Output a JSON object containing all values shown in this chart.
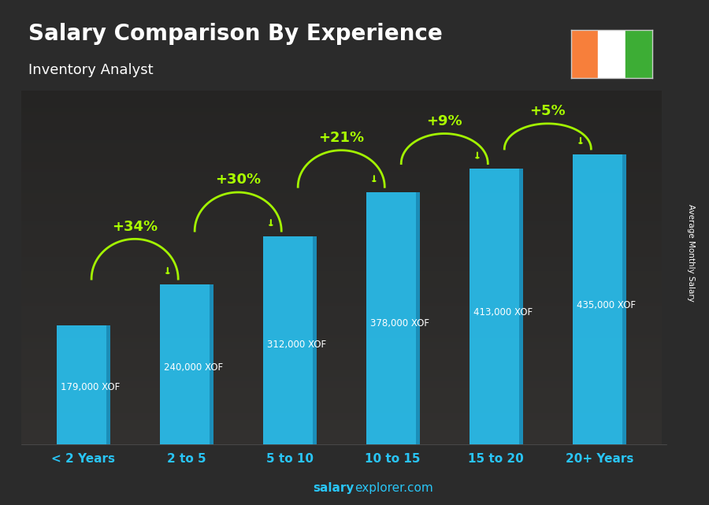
{
  "title": "Salary Comparison By Experience",
  "subtitle": "Inventory Analyst",
  "ylabel": "Average Monthly Salary",
  "footer_bold": "salary",
  "footer_normal": "explorer.com",
  "categories": [
    "< 2 Years",
    "2 to 5",
    "5 to 10",
    "10 to 15",
    "15 to 20",
    "20+ Years"
  ],
  "values": [
    179000,
    240000,
    312000,
    378000,
    413000,
    435000
  ],
  "labels": [
    "179,000 XOF",
    "240,000 XOF",
    "312,000 XOF",
    "378,000 XOF",
    "413,000 XOF",
    "435,000 XOF"
  ],
  "pct_changes": [
    null,
    "+34%",
    "+30%",
    "+21%",
    "+9%",
    "+5%"
  ],
  "bar_color": "#29C5F6",
  "bar_dark_color": "#1A8AB5",
  "pct_color": "#AAFF00",
  "label_color": "#FFFFFF",
  "title_color": "#FFFFFF",
  "tick_color": "#29C5F6",
  "footer_color": "#29C5F6",
  "bg_color": "#2b2b2b",
  "flag_colors": [
    "#F77F3B",
    "#FFFFFF",
    "#3DAD35"
  ],
  "ylim_max": 530000,
  "bar_width": 0.52
}
